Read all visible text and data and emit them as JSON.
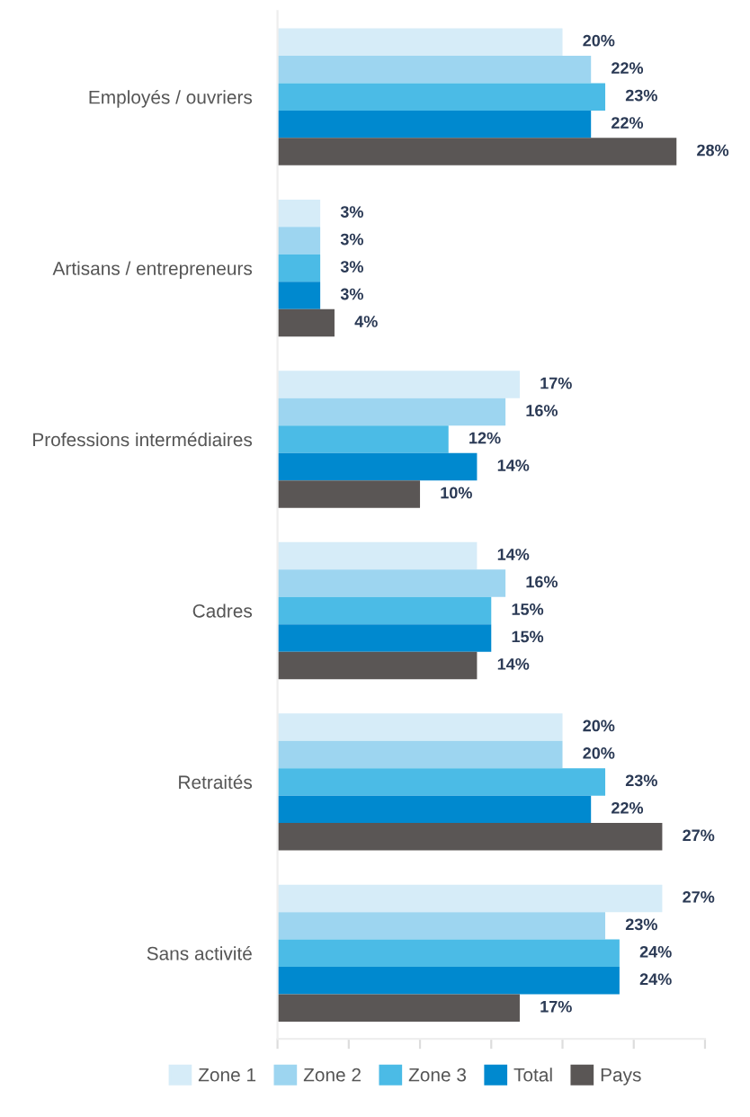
{
  "chart_data": {
    "type": "bar",
    "orientation": "horizontal",
    "categories": [
      "Employés / ouvriers",
      "Artisans / entrepreneurs",
      "Professions intermédiaires",
      "Cadres",
      "Retraités",
      "Sans activité"
    ],
    "series": [
      {
        "name": "Zone 1",
        "color": "#d6ecf8",
        "values": [
          20,
          3,
          17,
          14,
          20,
          27
        ],
        "value_labels": [
          "20%",
          "3%",
          "17%",
          "14%",
          "20%",
          "27%"
        ]
      },
      {
        "name": "Zone 2",
        "color": "#9dd5f0",
        "values": [
          22,
          3,
          16,
          16,
          20,
          23
        ],
        "value_labels": [
          "22%",
          "3%",
          "16%",
          "16%",
          "20%",
          "23%"
        ]
      },
      {
        "name": "Zone 3",
        "color": "#4bbbe6",
        "values": [
          23,
          3,
          12,
          15,
          23,
          24
        ],
        "value_labels": [
          "23%",
          "3%",
          "12%",
          "15%",
          "23%",
          "24%"
        ]
      },
      {
        "name": "Total",
        "color": "#0089cf",
        "values": [
          22,
          3,
          14,
          15,
          22,
          24
        ],
        "value_labels": [
          "22%",
          "3%",
          "14%",
          "15%",
          "22%",
          "24%"
        ]
      },
      {
        "name": "Pays",
        "color": "#5a5655",
        "values": [
          28,
          4,
          10,
          14,
          27,
          17
        ],
        "value_labels": [
          "28%",
          "4%",
          "10%",
          "14%",
          "27%",
          "17%"
        ]
      }
    ],
    "xlim": [
      0,
      30
    ],
    "xticks": [
      {
        "value": 0,
        "label": null
      },
      {
        "value": 5,
        "label": null
      },
      {
        "value": 10,
        "label": null
      },
      {
        "value": 15,
        "label": null
      },
      {
        "value": 20,
        "label": null
      },
      {
        "value": 25,
        "label": null
      },
      {
        "value": 30,
        "label": null
      }
    ],
    "legend": "bottom"
  }
}
